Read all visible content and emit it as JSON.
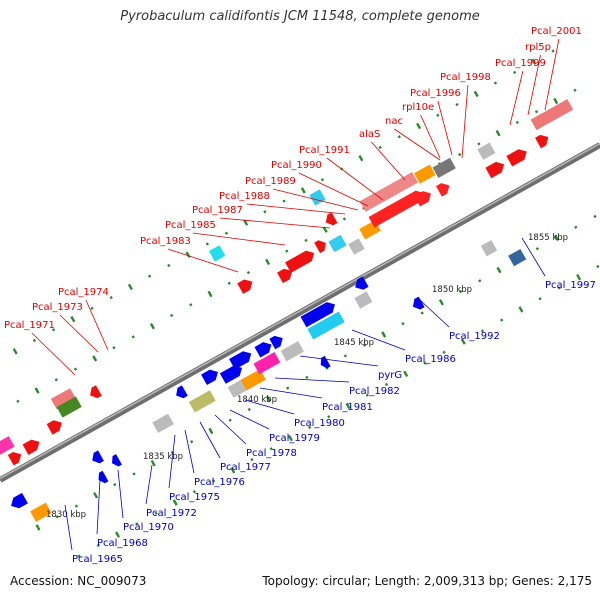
{
  "title": "Pyrobaculum calidifontis JCM 11548, complete genome",
  "footer": {
    "accession": "Accession: NC_009073",
    "summary": "Topology: circular; Length: 2,009,313 bp; Genes: 2,175"
  },
  "colors": {
    "top_label": "#dd0000",
    "bottom_label": "#0000bb",
    "backbone": "#8a8a8a",
    "tick": "#2a8a2a"
  },
  "scale_labels": [
    "1830 kbp",
    "1835 kbp",
    "1840 kbp",
    "1845 kbp",
    "1850 kbp",
    "1855 kbp"
  ],
  "top_labels": [
    "Pcal_1971",
    "Pcal_1973",
    "Pcal_1974",
    "Pcal_1983",
    "Pcal_1985",
    "Pcal_1987",
    "Pcal_1988",
    "Pcal_1989",
    "Pcal_1990",
    "Pcal_1991",
    "alaS",
    "nac",
    "rpl10e",
    "Pcal_1996",
    "Pcal_1998",
    "Pcal_1999",
    "rpl5p",
    "Pcal_2001"
  ],
  "bottom_labels": [
    "Pcal_1965",
    "Pcal_1968",
    "Pcal_1970",
    "Pcal_1972",
    "Pcal_1975",
    "Pcal_1976",
    "Pcal_1977",
    "Pcal_1978",
    "Pcal_1979",
    "Pcal_1980",
    "Pcal_1981",
    "Pcal_1982",
    "pyrG",
    "Pcal_1986",
    "Pcal_1992",
    "Pcal_1997"
  ]
}
